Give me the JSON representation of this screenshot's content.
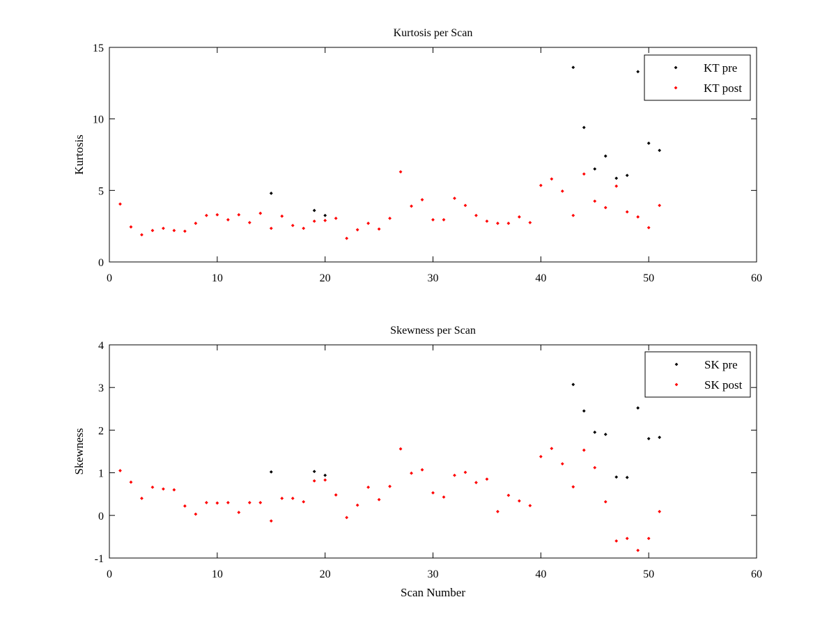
{
  "chart_data": [
    {
      "type": "scatter",
      "title": "Kurtosis per Scan",
      "xlabel": "",
      "ylabel": "Kurtosis",
      "xlim": [
        0,
        60
      ],
      "ylim": [
        0,
        15
      ],
      "xticks": [
        "0",
        "10",
        "20",
        "30",
        "40",
        "50",
        "60"
      ],
      "yticks": [
        "0",
        "5",
        "10",
        "15"
      ],
      "grid": false,
      "legend_position": "top-right",
      "series": [
        {
          "name": "KT pre",
          "color": "#000000",
          "points": [
            [
              15,
              4.8
            ],
            [
              19,
              3.6
            ],
            [
              20,
              3.25
            ],
            [
              43,
              13.6
            ],
            [
              44,
              9.4
            ],
            [
              45,
              6.5
            ],
            [
              46,
              7.4
            ],
            [
              47,
              5.85
            ],
            [
              48,
              6.05
            ],
            [
              49,
              13.3
            ],
            [
              50,
              8.3
            ],
            [
              51,
              7.8
            ]
          ]
        },
        {
          "name": "KT post",
          "color": "#ff0000",
          "points": [
            [
              1,
              4.05
            ],
            [
              2,
              2.45
            ],
            [
              3,
              1.9
            ],
            [
              4,
              2.2
            ],
            [
              5,
              2.35
            ],
            [
              6,
              2.2
            ],
            [
              7,
              2.15
            ],
            [
              8,
              2.7
            ],
            [
              9,
              3.25
            ],
            [
              10,
              3.3
            ],
            [
              11,
              2.95
            ],
            [
              12,
              3.3
            ],
            [
              13,
              2.75
            ],
            [
              14,
              3.4
            ],
            [
              15,
              2.35
            ],
            [
              16,
              3.2
            ],
            [
              17,
              2.55
            ],
            [
              18,
              2.35
            ],
            [
              19,
              2.85
            ],
            [
              20,
              2.9
            ],
            [
              21,
              3.05
            ],
            [
              22,
              1.65
            ],
            [
              23,
              2.25
            ],
            [
              24,
              2.7
            ],
            [
              25,
              2.3
            ],
            [
              26,
              3.05
            ],
            [
              27,
              6.3
            ],
            [
              28,
              3.9
            ],
            [
              29,
              4.35
            ],
            [
              30,
              2.95
            ],
            [
              31,
              2.95
            ],
            [
              32,
              4.45
            ],
            [
              33,
              3.95
            ],
            [
              34,
              3.25
            ],
            [
              35,
              2.85
            ],
            [
              36,
              2.7
            ],
            [
              37,
              2.7
            ],
            [
              38,
              3.15
            ],
            [
              39,
              2.75
            ],
            [
              40,
              5.35
            ],
            [
              41,
              5.8
            ],
            [
              42,
              4.95
            ],
            [
              43,
              3.25
            ],
            [
              44,
              6.15
            ],
            [
              45,
              4.25
            ],
            [
              46,
              3.8
            ],
            [
              47,
              5.3
            ],
            [
              48,
              3.5
            ],
            [
              49,
              3.15
            ],
            [
              50,
              2.4
            ],
            [
              51,
              3.95
            ]
          ]
        }
      ]
    },
    {
      "type": "scatter",
      "title": "Skewness per Scan",
      "xlabel": "Scan Number",
      "ylabel": "Skewness",
      "xlim": [
        0,
        60
      ],
      "ylim": [
        -1,
        4
      ],
      "xticks": [
        "0",
        "10",
        "20",
        "30",
        "40",
        "50",
        "60"
      ],
      "yticks": [
        "-1",
        "0",
        "1",
        "2",
        "3",
        "4"
      ],
      "grid": false,
      "legend_position": "top-right",
      "series": [
        {
          "name": "SK pre",
          "color": "#000000",
          "points": [
            [
              15,
              1.02
            ],
            [
              19,
              1.03
            ],
            [
              20,
              0.94
            ],
            [
              43,
              3.07
            ],
            [
              44,
              2.45
            ],
            [
              45,
              1.95
            ],
            [
              46,
              1.9
            ],
            [
              47,
              0.9
            ],
            [
              48,
              0.89
            ],
            [
              49,
              2.52
            ],
            [
              50,
              1.8
            ],
            [
              51,
              1.83
            ]
          ]
        },
        {
          "name": "SK post",
          "color": "#ff0000",
          "points": [
            [
              1,
              1.05
            ],
            [
              2,
              0.78
            ],
            [
              3,
              0.4
            ],
            [
              4,
              0.66
            ],
            [
              5,
              0.62
            ],
            [
              6,
              0.6
            ],
            [
              7,
              0.22
            ],
            [
              8,
              0.03
            ],
            [
              9,
              0.3
            ],
            [
              10,
              0.29
            ],
            [
              11,
              0.3
            ],
            [
              12,
              0.07
            ],
            [
              13,
              0.3
            ],
            [
              14,
              0.3
            ],
            [
              15,
              -0.13
            ],
            [
              16,
              0.4
            ],
            [
              17,
              0.4
            ],
            [
              18,
              0.32
            ],
            [
              19,
              0.81
            ],
            [
              20,
              0.83
            ],
            [
              21,
              0.48
            ],
            [
              22,
              -0.05
            ],
            [
              23,
              0.24
            ],
            [
              24,
              0.66
            ],
            [
              25,
              0.37
            ],
            [
              26,
              0.68
            ],
            [
              27,
              1.56
            ],
            [
              28,
              0.99
            ],
            [
              29,
              1.07
            ],
            [
              30,
              0.53
            ],
            [
              31,
              0.43
            ],
            [
              32,
              0.94
            ],
            [
              33,
              1.01
            ],
            [
              34,
              0.77
            ],
            [
              35,
              0.85
            ],
            [
              36,
              0.09
            ],
            [
              37,
              0.47
            ],
            [
              38,
              0.34
            ],
            [
              39,
              0.23
            ],
            [
              40,
              1.38
            ],
            [
              41,
              1.57
            ],
            [
              42,
              1.21
            ],
            [
              43,
              0.67
            ],
            [
              44,
              1.53
            ],
            [
              45,
              1.12
            ],
            [
              46,
              0.32
            ],
            [
              47,
              -0.6
            ],
            [
              48,
              -0.54
            ],
            [
              49,
              -0.82
            ],
            [
              50,
              -0.54
            ],
            [
              51,
              0.09
            ]
          ]
        }
      ]
    }
  ]
}
